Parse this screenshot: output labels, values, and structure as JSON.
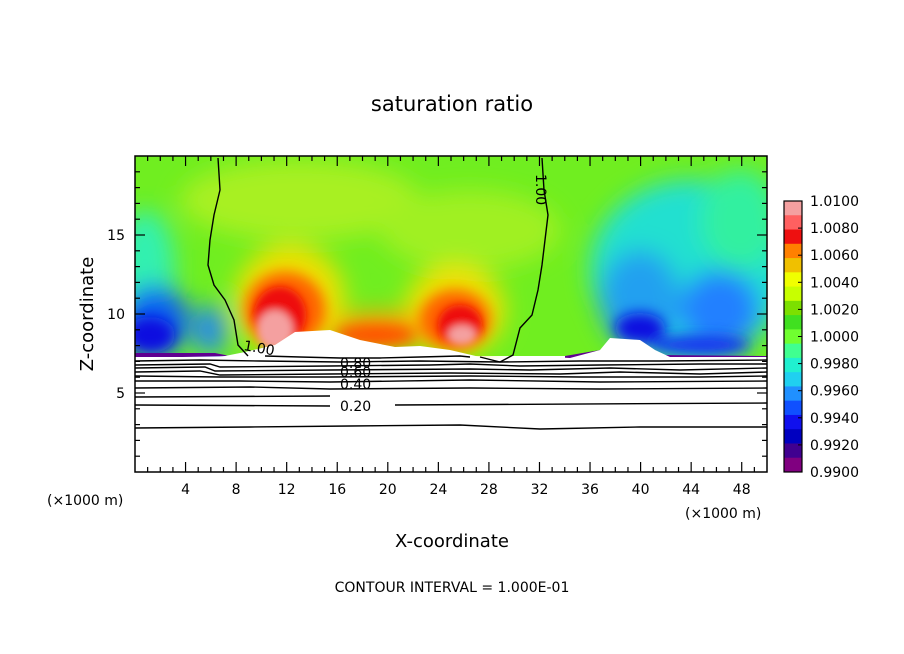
{
  "chart_data": {
    "type": "heatmap",
    "title": "saturation ratio",
    "xlabel": "X-coordinate",
    "ylabel": "Z-coordinate",
    "x_unit": "(×1000 m)",
    "y_unit": "(×1000 m)",
    "xlim": [
      0,
      50
    ],
    "ylim": [
      0,
      20
    ],
    "x_ticks": [
      "4",
      "8",
      "12",
      "16",
      "20",
      "24",
      "28",
      "32",
      "36",
      "40",
      "44",
      "48"
    ],
    "y_ticks": [
      "5",
      "10",
      "15"
    ],
    "colorbar": {
      "min": 0.99,
      "max": 1.01,
      "labels": [
        "1.0100",
        "1.0080",
        "1.0060",
        "1.0040",
        "1.0020",
        "1.0000",
        "0.9980",
        "0.9960",
        "0.9940",
        "0.9920",
        "0.9900"
      ],
      "colors": [
        "#f4a0a0",
        "#ff6060",
        "#ee1010",
        "#ff8000",
        "#f0c000",
        "#f0ff00",
        "#c8ff00",
        "#7ce000",
        "#40e020",
        "#70ff30",
        "#40ff90",
        "#20f0d0",
        "#20d0f0",
        "#2090ff",
        "#1050ff",
        "#1010ee",
        "#0000c0",
        "#400090",
        "#800080"
      ]
    },
    "contour_interval": "CONTOUR INTERVAL = 1.000E-01",
    "contour_labels": [
      "1.00",
      "1.00",
      "0.80",
      "0.60",
      "0.40",
      "0.20"
    ],
    "fields": [
      {
        "x_range": [
          9,
          13
        ],
        "z_range": [
          8,
          12
        ],
        "value": 1.01
      },
      {
        "x_range": [
          22,
          27
        ],
        "z_range": [
          8,
          11
        ],
        "value": 1.008
      },
      {
        "x_range": [
          0,
          6
        ],
        "z_range": [
          7.5,
          10
        ],
        "value": 0.992
      },
      {
        "x_range": [
          32,
          50
        ],
        "z_range": [
          7.5,
          14
        ],
        "value": 0.995
      }
    ]
  }
}
